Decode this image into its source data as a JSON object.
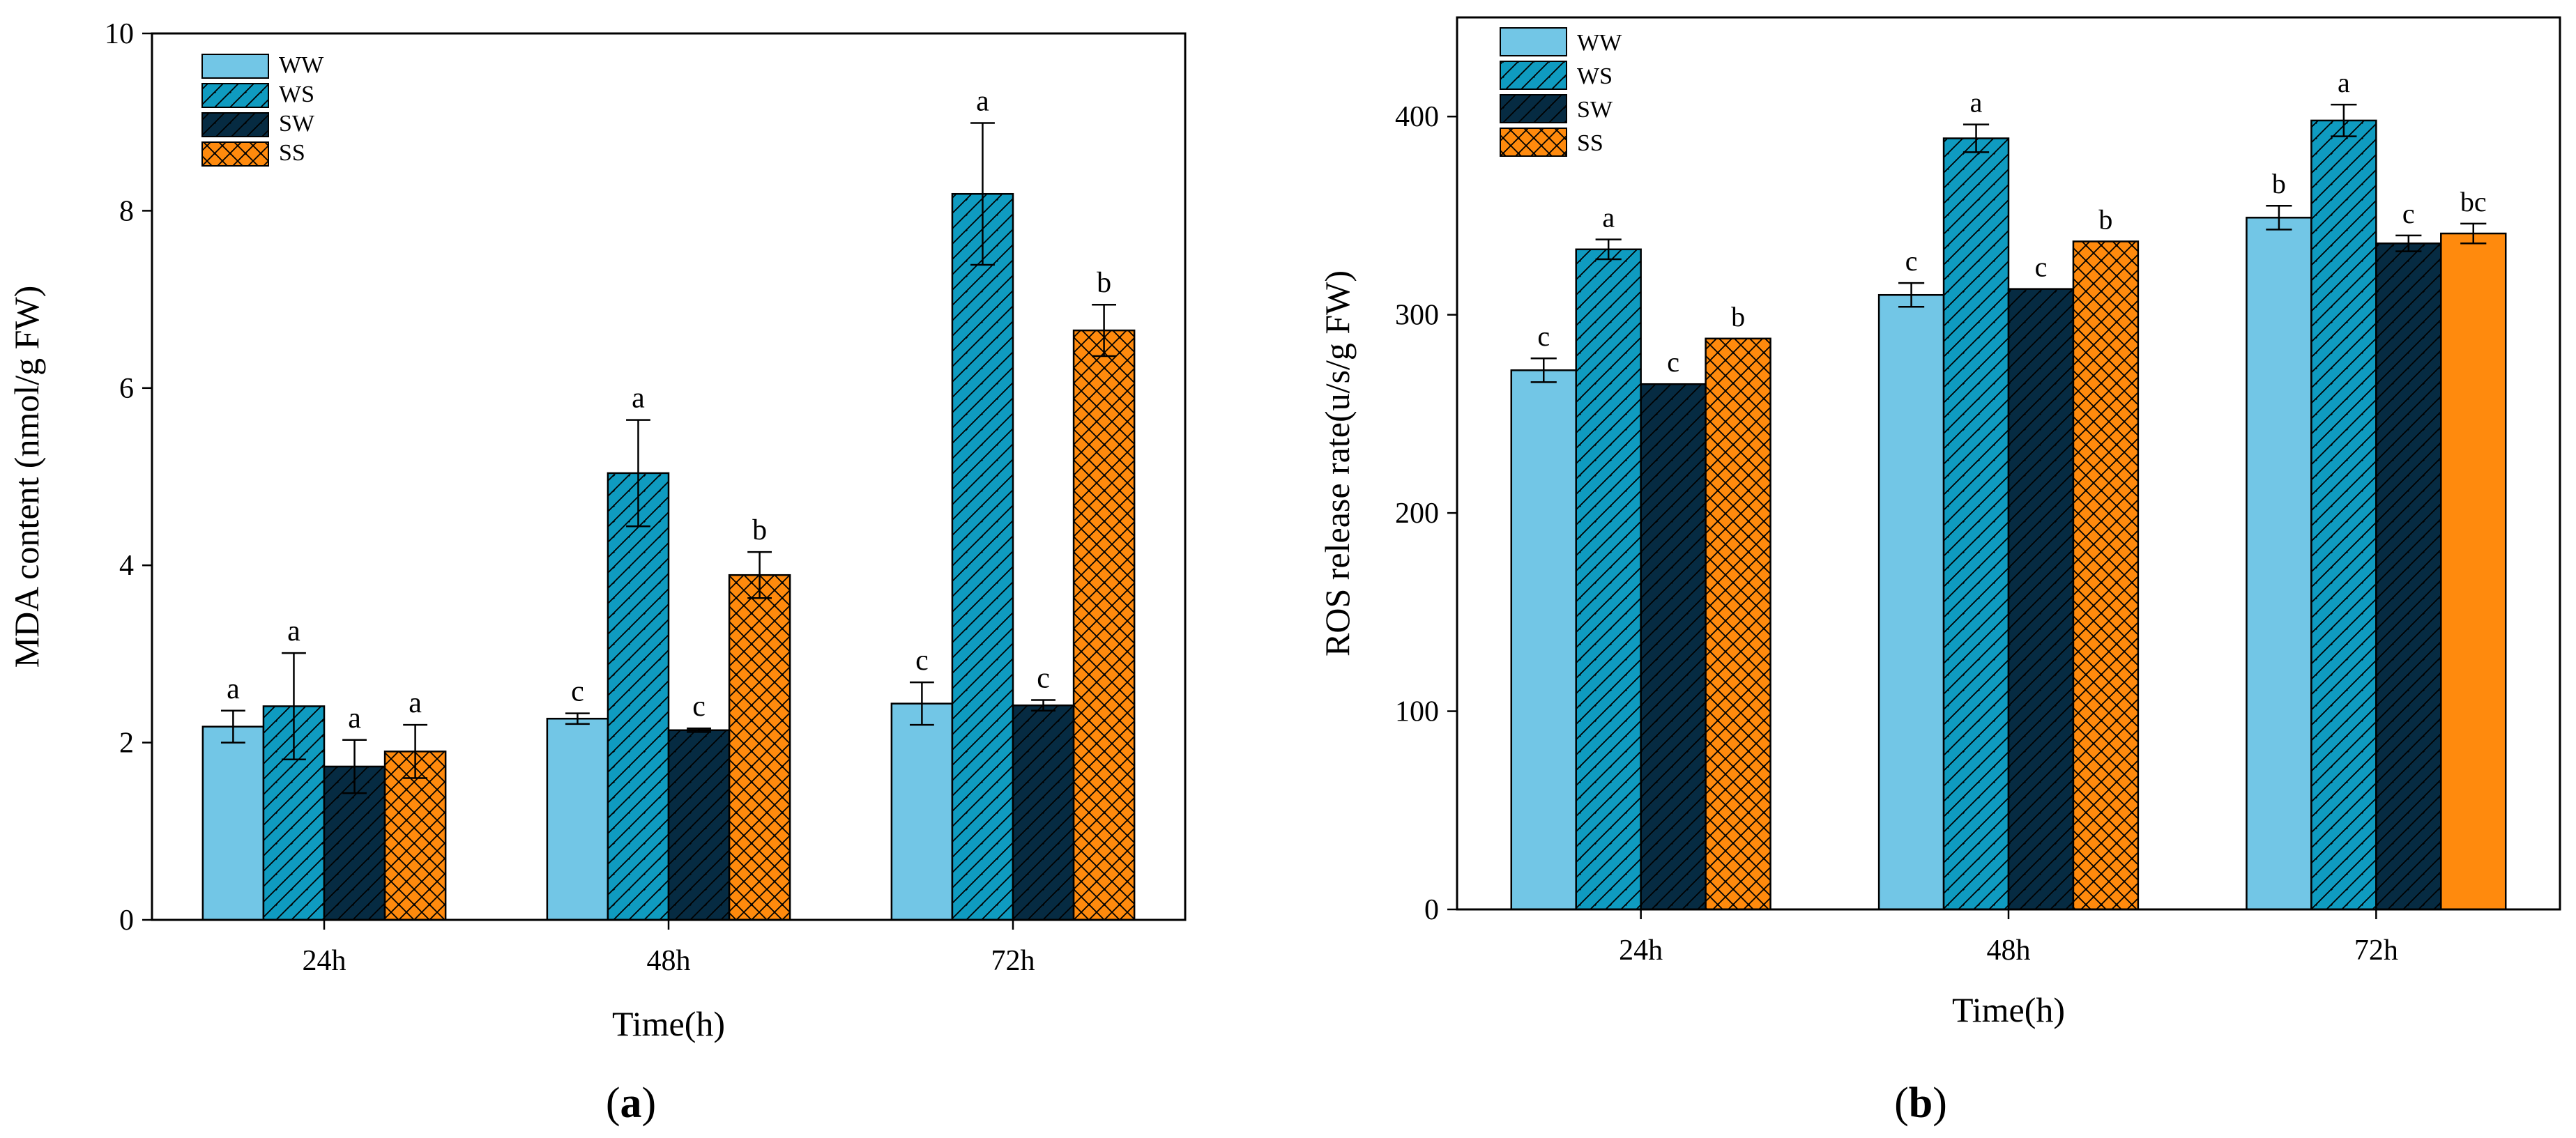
{
  "colors": {
    "WW": "#72c6e6",
    "WS": "#0f9bc0",
    "SW": "#062b42",
    "SS": "#ff8a0d",
    "axis": "#000000"
  },
  "chart_data": [
    {
      "type": "bar",
      "panel_label": "(a)",
      "xlabel": "Time(h)",
      "ylabel": "MDA content (nmol/g FW)",
      "categories": [
        "24h",
        "48h",
        "72h"
      ],
      "ylim": [
        0,
        10
      ],
      "yticks": [
        0,
        2,
        4,
        6,
        8,
        10
      ],
      "legend": [
        "WW",
        "WS",
        "SW",
        "SS"
      ],
      "series": [
        {
          "name": "WW",
          "values": [
            2.18,
            2.27,
            2.44
          ],
          "errors": [
            0.18,
            0.06,
            0.24
          ],
          "letters": [
            "a",
            "c",
            "c"
          ],
          "pattern": "solid"
        },
        {
          "name": "WS",
          "values": [
            2.41,
            5.04,
            8.19
          ],
          "errors": [
            0.6,
            0.6,
            0.8
          ],
          "letters": [
            "a",
            "a",
            "a"
          ],
          "pattern": "diagonal"
        },
        {
          "name": "SW",
          "values": [
            1.73,
            2.14,
            2.42
          ],
          "errors": [
            0.3,
            0.02,
            0.06
          ],
          "letters": [
            "a",
            "c",
            "c"
          ],
          "pattern": "diagonal"
        },
        {
          "name": "SS",
          "values": [
            1.9,
            3.89,
            6.65
          ],
          "errors": [
            0.3,
            0.26,
            0.29
          ],
          "letters": [
            "a",
            "b",
            "b"
          ],
          "pattern": "crosshatch"
        }
      ]
    },
    {
      "type": "bar",
      "panel_label": "(b)",
      "xlabel": "Time(h)",
      "ylabel": "ROS release rate(u/s/g FW)",
      "categories": [
        "24h",
        "48h",
        "72h"
      ],
      "ylim": [
        0,
        450
      ],
      "yticks": [
        0,
        100,
        200,
        300,
        400
      ],
      "legend": [
        "WW",
        "WS",
        "SW",
        "SS"
      ],
      "series": [
        {
          "name": "WW",
          "values": [
            272,
            310,
            349
          ],
          "errors": [
            6,
            6,
            6
          ],
          "letters": [
            "c",
            "c",
            "b"
          ],
          "pattern": "solid"
        },
        {
          "name": "WS",
          "values": [
            333,
            389,
            398
          ],
          "errors": [
            5,
            7,
            8
          ],
          "letters": [
            "a",
            "a",
            "a"
          ],
          "pattern": "diagonal"
        },
        {
          "name": "SW",
          "values": [
            265,
            313,
            336
          ],
          "errors": [
            0,
            0,
            4
          ],
          "letters": [
            "c",
            "c",
            "c"
          ],
          "pattern": "diagonal"
        },
        {
          "name": "SS",
          "values": [
            288,
            337,
            341
          ],
          "errors": [
            0,
            0,
            5
          ],
          "letters": [
            "b",
            "b",
            "bc"
          ],
          "pattern": "crosshatch"
        }
      ]
    }
  ]
}
